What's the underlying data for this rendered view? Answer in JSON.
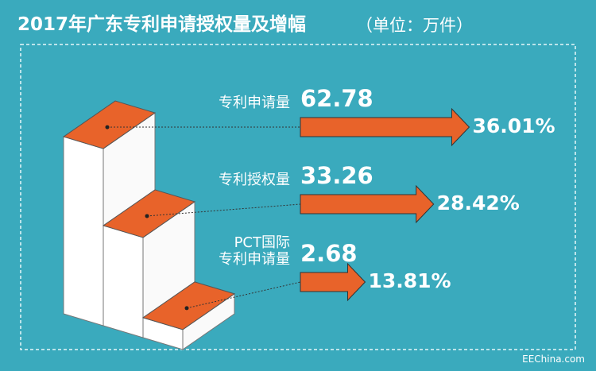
{
  "chart_data": {
    "type": "step-arrows",
    "title": "2017年广东专利申请授权量及增幅",
    "subtitle": "（单位：万件）",
    "source": "EEChina.com",
    "categories": [
      "专利申请量",
      "专利授权量",
      "PCT国际\n专利申请量"
    ],
    "series": [
      {
        "name": "申请授权量",
        "color": "#e8632a",
        "values": [
          62.78,
          33.26,
          2.68
        ]
      },
      {
        "name": "增幅",
        "color": "#e8632a",
        "values": [
          36.01,
          28.42,
          13.81
        ],
        "value_labels": [
          "36.01%",
          "28.42%",
          "13.81%"
        ]
      }
    ]
  }
}
